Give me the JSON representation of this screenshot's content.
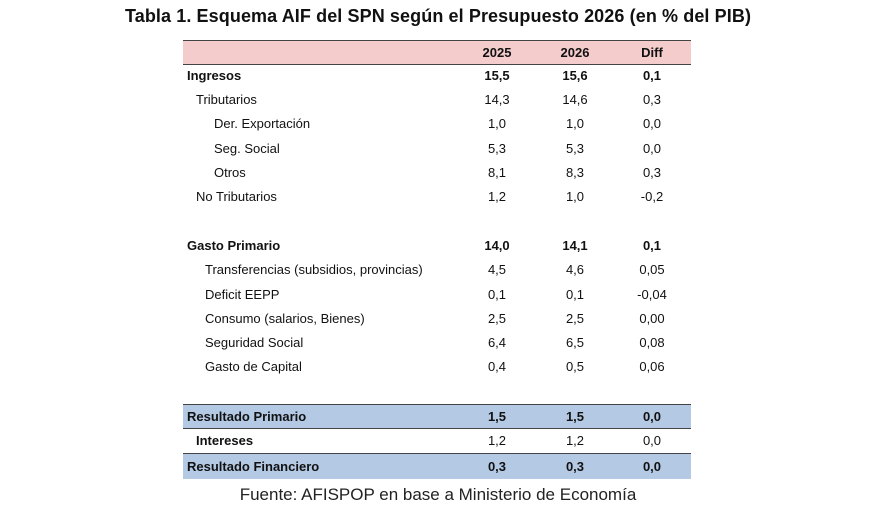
{
  "title": "Tabla 1. Esquema AIF del SPN según el Presupuesto 2026 (en % del PIB)",
  "table": {
    "headers": [
      "2025",
      "2026",
      "Diff"
    ],
    "ingresos": {
      "total": {
        "label": "Ingresos",
        "v2025": "15,5",
        "v2026": "15,6",
        "diff": "0,1"
      },
      "tributarios": {
        "label": "Tributarios",
        "v2025": "14,3",
        "v2026": "14,6",
        "diff": "0,3"
      },
      "der_exportacion": {
        "label": "Der. Exportación",
        "v2025": "1,0",
        "v2026": "1,0",
        "diff": "0,0"
      },
      "seg_social": {
        "label": "Seg. Social",
        "v2025": "5,3",
        "v2026": "5,3",
        "diff": "0,0"
      },
      "otros": {
        "label": "Otros",
        "v2025": "8,1",
        "v2026": "8,3",
        "diff": "0,3"
      },
      "no_tributarios": {
        "label": "No Tributarios",
        "v2025": "1,2",
        "v2026": "1,0",
        "diff": "-0,2"
      }
    },
    "gasto": {
      "total": {
        "label": "Gasto Primario",
        "v2025": "14,0",
        "v2026": "14,1",
        "diff": "0,1"
      },
      "transferencias": {
        "label": "Transferencias (subsidios, provincias)",
        "v2025": "4,5",
        "v2026": "4,6",
        "diff": "0,05"
      },
      "deficit_eepp": {
        "label": "Deficit EEPP",
        "v2025": "0,1",
        "v2026": "0,1",
        "diff": "-0,04"
      },
      "consumo": {
        "label": "Consumo (salarios, Bienes)",
        "v2025": "2,5",
        "v2026": "2,5",
        "diff": "0,00"
      },
      "seguridad_social": {
        "label": "Seguridad Social",
        "v2025": "6,4",
        "v2026": "6,5",
        "diff": "0,08"
      },
      "gasto_capital": {
        "label": "Gasto de Capital",
        "v2025": "0,4",
        "v2026": "0,5",
        "diff": "0,06"
      }
    },
    "resultados": {
      "primario": {
        "label": "Resultado Primario",
        "v2025": "1,5",
        "v2026": "1,5",
        "diff": "0,0"
      },
      "intereses": {
        "label": "Intereses",
        "v2025": "1,2",
        "v2026": "1,2",
        "diff": "0,0"
      },
      "financiero": {
        "label": "Resultado Financiero",
        "v2025": "0,3",
        "v2026": "0,3",
        "diff": "0,0"
      }
    }
  },
  "source": "Fuente: AFISPOP en base a Ministerio de Economía"
}
